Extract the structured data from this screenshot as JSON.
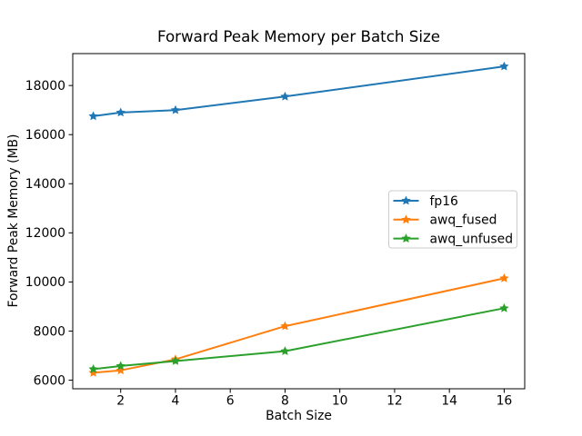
{
  "figure": {
    "background": "#ffffff",
    "frame_color": "#000000"
  },
  "chart_data": {
    "type": "line",
    "title": "Forward Peak Memory per Batch Size",
    "xlabel": "Batch Size",
    "ylabel": "Forward Peak Memory (MB)",
    "x": [
      1,
      2,
      4,
      8,
      16
    ],
    "series": [
      {
        "name": "fp16",
        "color": "#1f77b4",
        "marker": "star",
        "values": [
          16750,
          16900,
          17000,
          17550,
          18780
        ]
      },
      {
        "name": "awq_fused",
        "color": "#ff7f0e",
        "marker": "star",
        "values": [
          6300,
          6400,
          6850,
          8200,
          10150
        ]
      },
      {
        "name": "awq_unfused",
        "color": "#2ca02c",
        "marker": "star",
        "values": [
          6450,
          6580,
          6780,
          7180,
          8930
        ]
      }
    ],
    "xticks": [
      2,
      4,
      6,
      8,
      10,
      12,
      14,
      16
    ],
    "yticks": [
      6000,
      8000,
      10000,
      12000,
      14000,
      16000,
      18000
    ],
    "xlim": [
      0.25,
      16.75
    ],
    "ylim": [
      5650,
      19300
    ],
    "grid": false,
    "legend": {
      "position": "center right",
      "border_color": "#cccccc",
      "entries": [
        "fp16",
        "awq_fused",
        "awq_unfused"
      ]
    }
  }
}
